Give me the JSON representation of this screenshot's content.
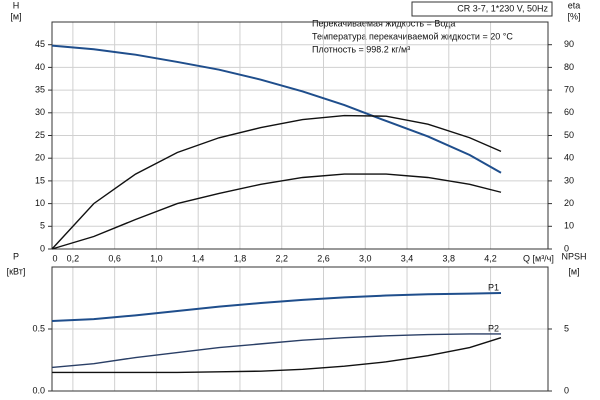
{
  "chart_data": [
    {
      "type": "line",
      "title": "CR 3-7, 1*230 V, 50Hz",
      "annotations": [
        "Перекачиваемая жидкость = Вода",
        "Температура перекачиваемой жидкости = 20 °C",
        "Плотность = 998.2 кг/м³"
      ],
      "xlabel": "Q [м³/ч]",
      "ylabel": "H",
      "ylabel_unit": "[м]",
      "y2label": "eta",
      "y2label_unit": "[%]",
      "x": [
        0,
        0.4,
        0.8,
        1.2,
        1.6,
        2.0,
        2.4,
        2.8,
        3.2,
        3.6,
        4.0,
        4.3
      ],
      "xlim": [
        0,
        4.75
      ],
      "xticks": [
        0,
        {
          "value": 0.2,
          "label": "0,2"
        },
        {
          "value": 0.6,
          "label": "0,6"
        },
        {
          "value": 1.0,
          "label": "1,0"
        },
        {
          "value": 1.4,
          "label": "1,4"
        },
        {
          "value": 1.8,
          "label": "1,8"
        },
        {
          "value": 2.2,
          "label": "2,2"
        },
        {
          "value": 2.6,
          "label": "2,6"
        },
        {
          "value": 3.0,
          "label": "3,0"
        },
        {
          "value": 3.4,
          "label": "3,4"
        },
        {
          "value": 3.8,
          "label": "3,8"
        },
        {
          "value": 4.2,
          "label": "4,2"
        }
      ],
      "ylim": [
        0,
        50
      ],
      "yticks": [
        0,
        5,
        10,
        15,
        20,
        25,
        30,
        35,
        40,
        45
      ],
      "y2lim": [
        0,
        100
      ],
      "y2ticks": [
        0,
        10,
        20,
        30,
        40,
        50,
        60,
        70,
        80,
        90
      ],
      "grid": true,
      "series": [
        {
          "color": "#1f4e8c",
          "values": [
            44.8,
            44,
            42.8,
            41.2,
            39.5,
            37.3,
            34.7,
            31.7,
            28.2,
            24.8,
            20.7,
            16.8
          ]
        },
        {
          "color": "#111111",
          "axis": "y2",
          "values": [
            0,
            20,
            33,
            42.5,
            49,
            53.5,
            57,
            58.8,
            58.5,
            55,
            49,
            43
          ]
        },
        {
          "color": "#111111",
          "axis": "y2",
          "values": [
            0,
            5.5,
            13,
            20,
            24.5,
            28.5,
            31.5,
            33,
            33,
            31.5,
            28.5,
            25
          ]
        }
      ]
    },
    {
      "type": "line",
      "ylabel": "P",
      "ylabel_unit": "[кВт]",
      "y2label": "NPSH",
      "y2label_unit": "[м]",
      "x": [
        0,
        0.4,
        0.8,
        1.2,
        1.6,
        2.0,
        2.4,
        2.8,
        3.2,
        3.6,
        4.0,
        4.3
      ],
      "xlim": [
        0,
        4.75
      ],
      "ylim": [
        0,
        1.0
      ],
      "yticks": [
        {
          "value": 0,
          "label": "0.0"
        },
        0.5
      ],
      "y2lim": [
        0,
        10
      ],
      "y2ticks": [
        0,
        5
      ],
      "grid": true,
      "series": [
        {
          "name": "P1",
          "color": "#1f4e8c",
          "values": [
            0.565,
            0.58,
            0.61,
            0.645,
            0.68,
            0.71,
            0.735,
            0.755,
            0.77,
            0.78,
            0.785,
            0.79
          ]
        },
        {
          "name": "P2",
          "color": "#2a3f66",
          "values": [
            0.19,
            0.22,
            0.27,
            0.31,
            0.35,
            0.38,
            0.41,
            0.43,
            0.445,
            0.455,
            0.46,
            0.46
          ]
        },
        {
          "color": "#111111",
          "axis": "y2",
          "values": [
            1.5,
            1.5,
            1.5,
            1.5,
            1.55,
            1.6,
            1.75,
            2.0,
            2.35,
            2.85,
            3.5,
            4.3
          ]
        }
      ]
    }
  ]
}
